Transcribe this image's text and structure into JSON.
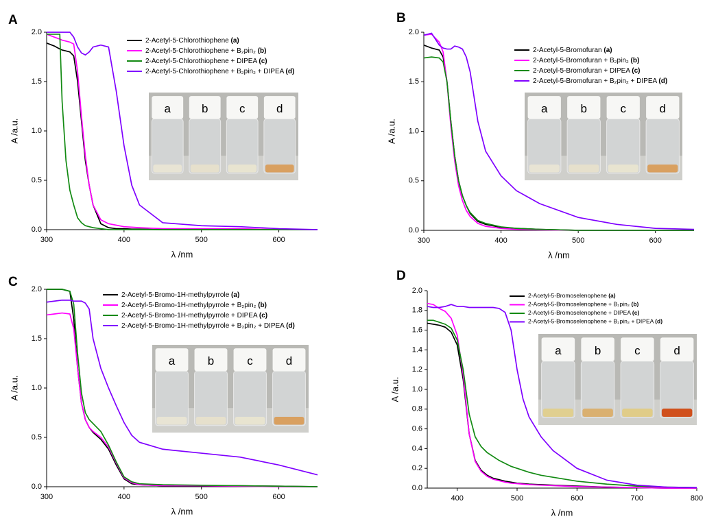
{
  "chart_data": [
    {
      "type": "line",
      "panel_label": "A",
      "xlabel": "λ /nm",
      "ylabel": "A /a.u.",
      "xlim": [
        300,
        650
      ],
      "ylim": [
        0,
        2.0
      ],
      "xticks": [
        300,
        400,
        500,
        600
      ],
      "yticks": [
        {
          "value": 0,
          "label": "0.0"
        },
        0.5,
        {
          "value": 1,
          "label": "1.0"
        },
        1.5,
        {
          "value": 2,
          "label": "2.0"
        }
      ],
      "photo_labels": [
        "a",
        "b",
        "c",
        "d"
      ],
      "x": [
        300,
        310,
        317,
        320,
        325,
        330,
        335,
        340,
        345,
        350,
        355,
        360,
        370,
        380,
        390,
        400,
        410,
        420,
        450,
        500,
        550,
        600,
        650
      ],
      "series": [
        {
          "name": "2-Acetyl-5-Chlorothiophene (a)",
          "color": "#000000",
          "values": [
            1.89,
            1.86,
            1.83,
            1.82,
            1.81,
            1.8,
            1.76,
            1.5,
            1.1,
            0.7,
            0.45,
            0.25,
            0.06,
            0.02,
            0.01,
            0.01,
            0.005,
            0.005,
            0,
            0,
            0,
            0,
            0
          ]
        },
        {
          "name": "2-Acetyl-5-Chlorothiophene + B₂pin₂ (b)",
          "color": "#ff00ff",
          "values": [
            1.98,
            1.95,
            1.93,
            1.92,
            1.91,
            1.9,
            1.88,
            1.6,
            1.15,
            0.75,
            0.45,
            0.25,
            0.1,
            0.06,
            0.045,
            0.03,
            0.025,
            0.02,
            0.01,
            0.01,
            0.01,
            0,
            0
          ]
        },
        {
          "name": "2-Acetyl-5-Chlorothiophene + DIPEA (c)",
          "color": "#128a12",
          "values": [
            1.98,
            1.98,
            1.98,
            1.3,
            0.7,
            0.4,
            0.25,
            0.12,
            0.07,
            0.04,
            0.03,
            0.02,
            0.01,
            0,
            0,
            0,
            0,
            0,
            0,
            0,
            0,
            0,
            0
          ]
        },
        {
          "name": "2-Acetyl-5-Chlorothiophene + B₂pin₂ + DIPEA (d)",
          "color": "#7f00ff",
          "values": [
            2.0,
            2.0,
            2.0,
            2.0,
            2.0,
            2.0,
            1.95,
            1.85,
            1.79,
            1.77,
            1.8,
            1.85,
            1.87,
            1.85,
            1.4,
            0.85,
            0.45,
            0.25,
            0.07,
            0.04,
            0.03,
            0.01,
            0
          ]
        }
      ]
    },
    {
      "type": "line",
      "panel_label": "B",
      "xlabel": "λ /nm",
      "ylabel": "A /a.u.",
      "xlim": [
        300,
        650
      ],
      "ylim": [
        0,
        2.0
      ],
      "xticks": [
        300,
        400,
        500,
        600
      ],
      "yticks": [
        {
          "value": 0,
          "label": "0.0"
        },
        0.5,
        {
          "value": 1,
          "label": "1.0"
        },
        1.5,
        {
          "value": 2,
          "label": "2.0"
        }
      ],
      "photo_labels": [
        "a",
        "b",
        "c",
        "d"
      ],
      "x": [
        300,
        310,
        320,
        325,
        330,
        335,
        340,
        345,
        350,
        355,
        360,
        370,
        380,
        400,
        420,
        450,
        500,
        550,
        600,
        650
      ],
      "series": [
        {
          "name": "2-Acetyl-5-Bromofuran (a)",
          "color": "#000000",
          "values": [
            1.87,
            1.84,
            1.82,
            1.75,
            1.5,
            1.1,
            0.75,
            0.5,
            0.35,
            0.25,
            0.17,
            0.09,
            0.06,
            0.03,
            0.02,
            0.01,
            0,
            0,
            0,
            0
          ]
        },
        {
          "name": "2-Acetyl-5-Bromofuran + B₂pin₂ (b)",
          "color": "#ff00ff",
          "values": [
            1.97,
            1.98,
            1.9,
            1.8,
            1.5,
            1.05,
            0.7,
            0.45,
            0.3,
            0.2,
            0.14,
            0.07,
            0.04,
            0.02,
            0.01,
            0.005,
            0,
            0,
            0,
            0
          ]
        },
        {
          "name": "2-Acetyl-5-Bromofuran + DIPEA (c)",
          "color": "#128a12",
          "values": [
            1.74,
            1.75,
            1.74,
            1.7,
            1.5,
            1.1,
            0.75,
            0.5,
            0.35,
            0.25,
            0.18,
            0.1,
            0.07,
            0.035,
            0.02,
            0.01,
            0,
            0,
            0,
            0
          ]
        },
        {
          "name": "2-Acetyl-5-Bromofuran + B₂pin₂ + DIPEA (d)",
          "color": "#7f00ff",
          "values": [
            1.97,
            1.99,
            1.87,
            1.84,
            1.83,
            1.83,
            1.86,
            1.85,
            1.83,
            1.75,
            1.6,
            1.1,
            0.8,
            0.55,
            0.4,
            0.27,
            0.13,
            0.06,
            0.02,
            0.01
          ]
        }
      ]
    },
    {
      "type": "line",
      "panel_label": "C",
      "xlabel": "λ /nm",
      "ylabel": "A /a.u.",
      "xlim": [
        300,
        650
      ],
      "ylim": [
        0,
        2.0
      ],
      "xticks": [
        300,
        400,
        500,
        600
      ],
      "yticks": [
        {
          "value": 0,
          "label": "0.0"
        },
        0.5,
        {
          "value": 1,
          "label": "1.0"
        },
        1.5,
        {
          "value": 2,
          "label": "2.0"
        }
      ],
      "photo_labels": [
        "a",
        "b",
        "c",
        "d"
      ],
      "x": [
        300,
        310,
        320,
        330,
        335,
        340,
        345,
        350,
        355,
        360,
        370,
        380,
        390,
        400,
        410,
        420,
        450,
        500,
        550,
        600,
        650
      ],
      "series": [
        {
          "name": "2-Acetyl-5-Bromo-1H-methylpyrrole (a)",
          "color": "#000000",
          "values": [
            2.0,
            2.0,
            2.0,
            1.98,
            1.7,
            1.2,
            0.85,
            0.68,
            0.6,
            0.55,
            0.48,
            0.38,
            0.22,
            0.08,
            0.03,
            0.02,
            0.01,
            0.01,
            0.01,
            0.005,
            0
          ]
        },
        {
          "name": "2-Acetyl-5-Bromo-1H-methylpyrrole + B₂pin₂ (b)",
          "color": "#ff00ff",
          "values": [
            1.74,
            1.75,
            1.76,
            1.75,
            1.6,
            1.2,
            0.85,
            0.68,
            0.6,
            0.56,
            0.5,
            0.4,
            0.24,
            0.09,
            0.04,
            0.02,
            0.01,
            0.01,
            0.005,
            0,
            0
          ]
        },
        {
          "name": "2-Acetyl-5-Bromo-1H-methylpyrrole + DIPEA (c)",
          "color": "#128a12",
          "values": [
            2.0,
            2.0,
            2.0,
            1.98,
            1.85,
            1.35,
            0.95,
            0.75,
            0.68,
            0.64,
            0.56,
            0.42,
            0.25,
            0.1,
            0.05,
            0.03,
            0.02,
            0.015,
            0.01,
            0.005,
            0
          ]
        },
        {
          "name": "2-Acetyl-5-Bromo-1H-methylpyrrole + B₂pin₂ + DIPEA (d)",
          "color": "#7f00ff",
          "values": [
            1.87,
            1.88,
            1.89,
            1.89,
            1.88,
            1.88,
            1.88,
            1.86,
            1.8,
            1.5,
            1.2,
            1.0,
            0.82,
            0.65,
            0.52,
            0.45,
            0.38,
            0.34,
            0.3,
            0.22,
            0.12
          ]
        }
      ]
    },
    {
      "type": "line",
      "panel_label": "D",
      "xlabel": "λ /nm",
      "ylabel": "A /a.u.",
      "xlim": [
        350,
        800
      ],
      "ylim": [
        0,
        2.0
      ],
      "xticks": [
        400,
        500,
        600,
        700,
        800
      ],
      "yticks": [
        {
          "value": 0,
          "label": "0.0"
        },
        0.2,
        0.4,
        0.6,
        0.8,
        {
          "value": 1,
          "label": "1.0"
        },
        1.2,
        1.4,
        1.6,
        1.8,
        {
          "value": 2,
          "label": "2.0"
        }
      ],
      "photo_labels": [
        "a",
        "b",
        "c",
        "d"
      ],
      "x": [
        350,
        360,
        370,
        380,
        390,
        400,
        410,
        420,
        430,
        440,
        450,
        460,
        470,
        480,
        490,
        500,
        510,
        520,
        540,
        560,
        600,
        650,
        700,
        750,
        800
      ],
      "series": [
        {
          "name": "2-Acetyl-5-Bromoselenophene (a)",
          "color": "#000000",
          "values": [
            1.67,
            1.66,
            1.65,
            1.63,
            1.58,
            1.45,
            1.1,
            0.55,
            0.28,
            0.18,
            0.13,
            0.1,
            0.085,
            0.07,
            0.06,
            0.05,
            0.045,
            0.04,
            0.035,
            0.03,
            0.02,
            0.01,
            0.005,
            0,
            0
          ]
        },
        {
          "name": "2-Acetyl-5-Bromoselenophene + B₂pin₂ (b)",
          "color": "#ff00ff",
          "values": [
            1.87,
            1.86,
            1.82,
            1.79,
            1.72,
            1.55,
            1.15,
            0.55,
            0.27,
            0.17,
            0.12,
            0.09,
            0.075,
            0.06,
            0.05,
            0.045,
            0.04,
            0.035,
            0.03,
            0.025,
            0.015,
            0.01,
            0.005,
            0,
            0
          ]
        },
        {
          "name": "2-Acetyl-5-Bromoselenophene + DIPEA (c)",
          "color": "#128a12",
          "values": [
            1.7,
            1.7,
            1.68,
            1.66,
            1.62,
            1.5,
            1.2,
            0.75,
            0.52,
            0.42,
            0.36,
            0.32,
            0.28,
            0.25,
            0.22,
            0.2,
            0.18,
            0.16,
            0.13,
            0.11,
            0.07,
            0.04,
            0.02,
            0.01,
            0.005
          ]
        },
        {
          "name": "2-Acetyl-5-Bromoselenophene + B₂pin₂ + DIPEA (d)",
          "color": "#7f00ff",
          "values": [
            1.84,
            1.83,
            1.83,
            1.84,
            1.86,
            1.84,
            1.84,
            1.83,
            1.83,
            1.83,
            1.83,
            1.83,
            1.82,
            1.78,
            1.6,
            1.2,
            0.9,
            0.72,
            0.52,
            0.38,
            0.2,
            0.08,
            0.03,
            0.01,
            0.005
          ]
        }
      ]
    }
  ]
}
